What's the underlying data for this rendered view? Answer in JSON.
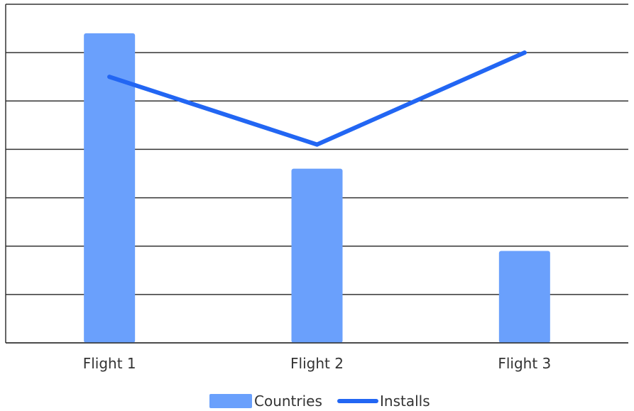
{
  "colors": {
    "bar": "#6aa0fc",
    "line": "#2266f3",
    "grid": "#333333",
    "axis": "#333333",
    "background": "#ffffff"
  },
  "chart_data": {
    "type": "bar",
    "title": "",
    "xlabel": "",
    "ylabel": "",
    "categories": [
      "Flight 1",
      "Flight 2",
      "Flight 3"
    ],
    "ylim": [
      0,
      7
    ],
    "grid": true,
    "y_tick_labels_shown": false,
    "legend_position": "bottom-center",
    "series": [
      {
        "name": "Countries",
        "type": "bar",
        "values": [
          6.4,
          3.6,
          1.9
        ]
      },
      {
        "name": "Installs",
        "type": "line",
        "values": [
          5.5,
          4.1,
          6.0
        ]
      }
    ]
  }
}
